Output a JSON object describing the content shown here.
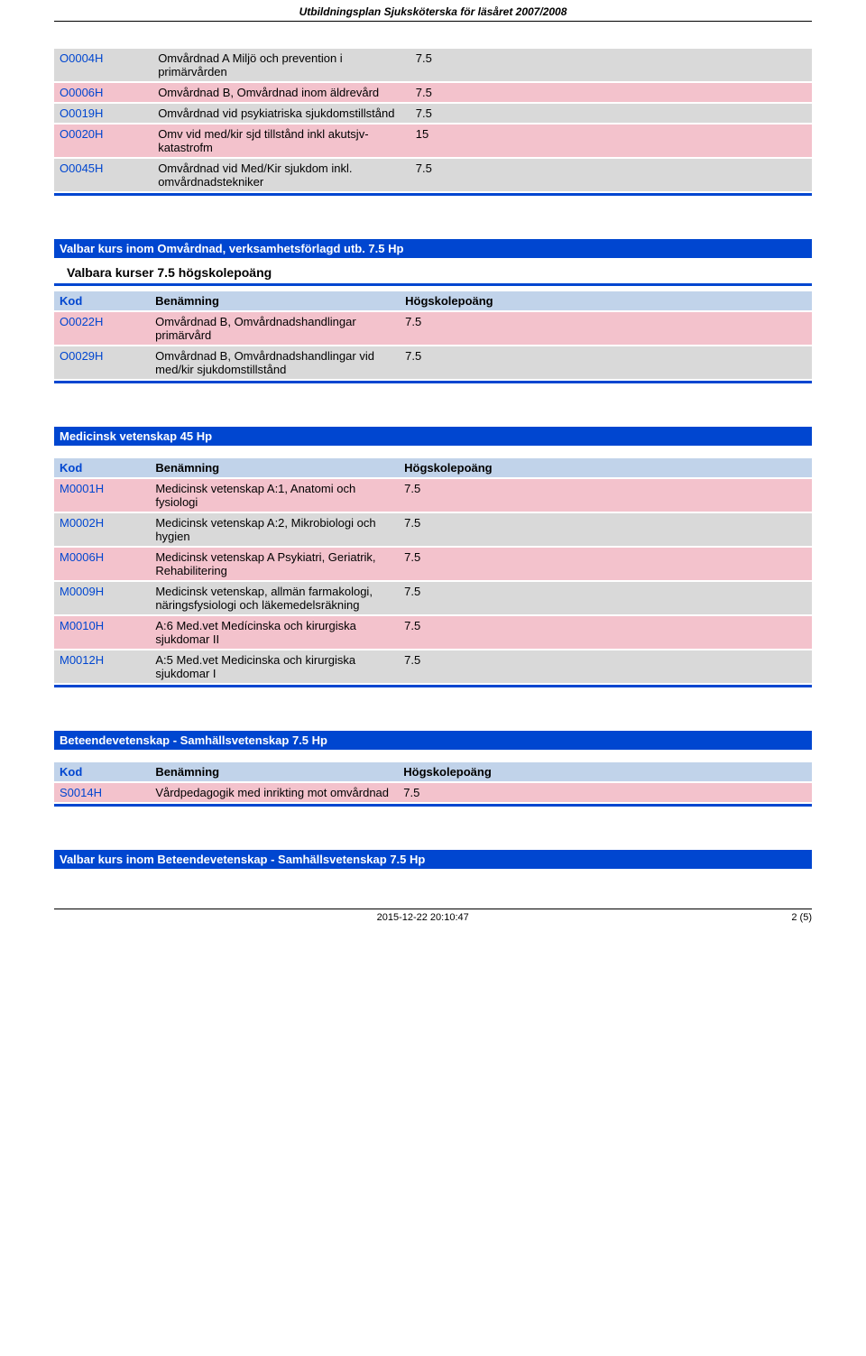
{
  "header": {
    "title": "Utbildningsplan Sjuksköterska för läsåret 2007/2008"
  },
  "footer": {
    "timestamp": "2015-12-22 20:10:47",
    "page": "2 (5)"
  },
  "table1": {
    "rows": [
      {
        "code": "O0004H",
        "name": "Omvårdnad A Miljö och prevention i primärvården",
        "points": "7.5",
        "gray": true
      },
      {
        "code": "O0006H",
        "name": "Omvårdnad B, Omvårdnad inom äldrevård",
        "points": "7.5",
        "gray": false
      },
      {
        "code": "O0019H",
        "name": "Omvårdnad vid psykiatriska sjukdomstillstånd",
        "points": "7.5",
        "gray": true
      },
      {
        "code": "O0020H",
        "name": "Omv vid med/kir sjd tillstånd inkl akutsjv-katastrofm",
        "points": "15",
        "gray": false
      },
      {
        "code": "O0045H",
        "name": "Omvårdnad vid Med/Kir sjukdom inkl. omvårdnadstekniker",
        "points": "7.5",
        "gray": true
      }
    ]
  },
  "section2": {
    "title": "Valbar kurs inom Omvårdnad, verksamhetsförlagd utb. 7.5 Hp",
    "subheader": "Valbara kurser 7.5 högskolepoäng",
    "headers": {
      "code": "Kod",
      "name": "Benämning",
      "points": "Högskolepoäng"
    },
    "rows": [
      {
        "code": "O0022H",
        "name": "Omvårdnad B, Omvårdnadshandlingar primärvård",
        "points": "7.5",
        "gray": false
      },
      {
        "code": "O0029H",
        "name": "Omvårdnad B, Omvårdnadshandlingar vid med/kir sjukdomstillstånd",
        "points": "7.5",
        "gray": true
      }
    ]
  },
  "section3": {
    "title": "Medicinsk vetenskap 45 Hp",
    "headers": {
      "code": "Kod",
      "name": "Benämning",
      "points": "Högskolepoäng"
    },
    "rows": [
      {
        "code": "M0001H",
        "name": "Medicinsk vetenskap A:1, Anatomi och fysiologi",
        "points": "7.5",
        "gray": false
      },
      {
        "code": "M0002H",
        "name": "Medicinsk vetenskap A:2, Mikrobiologi och hygien",
        "points": "7.5",
        "gray": true
      },
      {
        "code": "M0006H",
        "name": "Medicinsk vetenskap A Psykiatri, Geriatrik, Rehabilitering",
        "points": "7.5",
        "gray": false
      },
      {
        "code": "M0009H",
        "name": "Medicinsk vetenskap, allmän farmakologi, näringsfysiologi och läkemedelsräkning",
        "points": "7.5",
        "gray": true
      },
      {
        "code": "M0010H",
        "name": "A:6 Med.vet Medícinska och kirurgiska sjukdomar II",
        "points": "7.5",
        "gray": false
      },
      {
        "code": "M0012H",
        "name": "A:5 Med.vet Medicinska och kirurgiska sjukdomar I",
        "points": "7.5",
        "gray": true
      }
    ]
  },
  "section4": {
    "title": "Beteendevetenskap - Samhällsvetenskap 7.5 Hp",
    "headers": {
      "code": "Kod",
      "name": "Benämning",
      "points": "Högskolepoäng"
    },
    "rows": [
      {
        "code": "S0014H",
        "name": "Vårdpedagogik med inrikting mot omvårdnad",
        "points": "7.5",
        "gray": false
      }
    ]
  },
  "section5": {
    "title": "Valbar kurs inom Beteendevetenskap - Samhällsvetenskap 7.5 Hp"
  }
}
